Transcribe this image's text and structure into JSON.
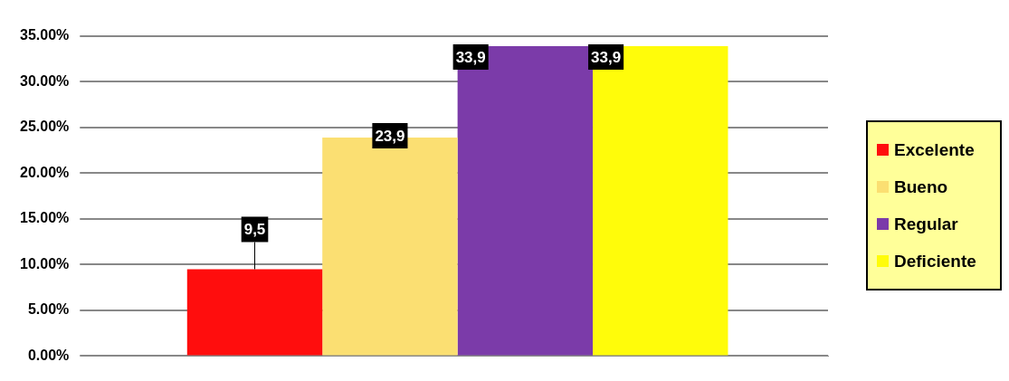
{
  "chart_data": {
    "type": "bar",
    "categories": [
      null
    ],
    "series": [
      {
        "name": "Excelente",
        "color": "#ff0d0d",
        "values": [
          9.5
        ],
        "value_labels": [
          "9,5"
        ]
      },
      {
        "name": "Bueno",
        "color": "#fbdf72",
        "values": [
          23.9
        ],
        "value_labels": [
          "23,9"
        ]
      },
      {
        "name": "Regular",
        "color": "#7b3ba9",
        "values": [
          33.9
        ],
        "value_labels": [
          "33,9"
        ]
      },
      {
        "name": "Deficiente",
        "color": "#fffc0a",
        "values": [
          33.9
        ],
        "value_labels": [
          "33,9"
        ]
      }
    ],
    "ylim": [
      0,
      35
    ],
    "yticks": [
      {
        "value": 0,
        "label": "0.00%"
      },
      {
        "value": 5,
        "label": "5.00%"
      },
      {
        "value": 10,
        "label": "10.00%"
      },
      {
        "value": 15,
        "label": "15.00%"
      },
      {
        "value": 20,
        "label": "20.00%"
      },
      {
        "value": 25,
        "label": "25.00%"
      },
      {
        "value": 30,
        "label": "30.00%"
      },
      {
        "value": 35,
        "label": "35.00%"
      }
    ],
    "grid": "y",
    "legend": "right"
  }
}
